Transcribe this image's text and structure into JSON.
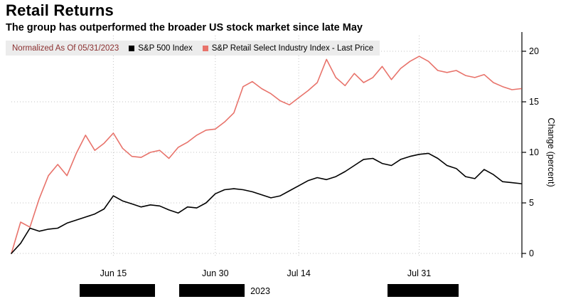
{
  "header": {
    "title": "Retail Returns",
    "subtitle": "The group has outperformed the broader US stock market since late May"
  },
  "legend": {
    "normalized_label": "Normalized As Of 05/31/2023"
  },
  "chart_data": {
    "type": "line",
    "title": "Retail Returns",
    "subtitle": "The group has outperformed the broader US stock market since late May",
    "normalized_as_of": "05/31/2023",
    "ylabel": "Change (percent)",
    "y_ticks": [
      0,
      5,
      10,
      15,
      20
    ],
    "ylim": [
      0,
      20
    ],
    "x_tick_labels": [
      "Jun 15",
      "Jun 30",
      "Jul 14",
      "Jul 31"
    ],
    "x_tick_indices": [
      11,
      22,
      31,
      44
    ],
    "year_label": "2023",
    "grid": "dotted",
    "legend_position": "top",
    "series": [
      {
        "name": "S&P 500 Index",
        "color": "#000000",
        "values": [
          0.0,
          1.0,
          2.5,
          2.2,
          2.4,
          2.5,
          3.0,
          3.3,
          3.6,
          3.9,
          4.4,
          5.7,
          5.2,
          4.9,
          4.6,
          4.8,
          4.7,
          4.3,
          4.0,
          4.6,
          4.5,
          5.0,
          5.9,
          6.3,
          6.4,
          6.3,
          6.1,
          5.8,
          5.5,
          5.7,
          6.2,
          6.7,
          7.2,
          7.5,
          7.3,
          7.6,
          8.1,
          8.7,
          9.3,
          9.4,
          8.9,
          8.7,
          9.3,
          9.6,
          9.8,
          9.9,
          9.4,
          8.7,
          8.4,
          7.6,
          7.4,
          8.3,
          7.8,
          7.1,
          7.0,
          6.9
        ]
      },
      {
        "name": "S&P Retail Select Industry Index - Last Price",
        "color": "#e8736b",
        "values": [
          0.0,
          3.1,
          2.6,
          5.4,
          7.7,
          8.8,
          7.7,
          9.9,
          11.7,
          10.2,
          10.9,
          11.9,
          10.4,
          9.6,
          9.5,
          10.0,
          10.2,
          9.4,
          10.5,
          11.0,
          11.7,
          12.2,
          12.3,
          13.0,
          13.9,
          16.5,
          17.0,
          16.3,
          15.8,
          15.1,
          14.7,
          15.4,
          16.1,
          16.9,
          19.2,
          17.4,
          16.6,
          17.8,
          16.9,
          17.4,
          18.5,
          17.2,
          18.3,
          19.0,
          19.5,
          19.0,
          18.1,
          17.9,
          18.1,
          17.6,
          17.4,
          17.7,
          16.9,
          16.5,
          16.2,
          16.3
        ]
      }
    ]
  }
}
